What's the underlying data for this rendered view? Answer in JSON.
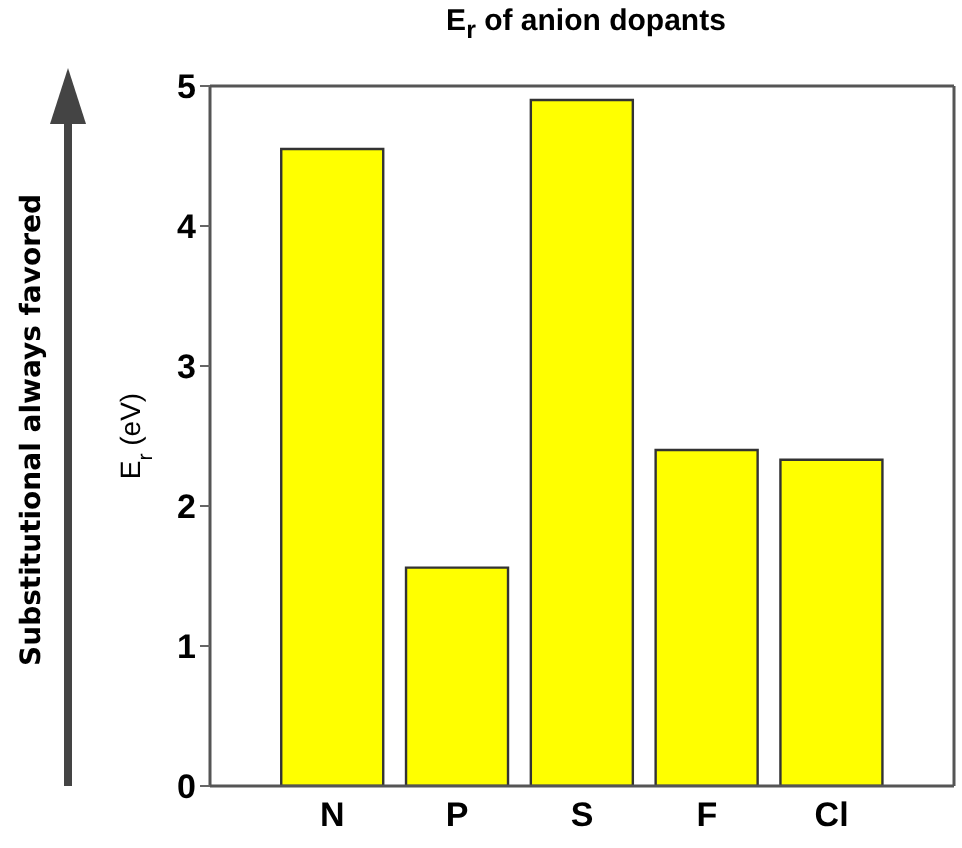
{
  "chart_data": {
    "type": "bar",
    "title": "E$_{r}$ of anion dopants",
    "ylabel": "E$_{r}$ (eV)",
    "categories": [
      "N",
      "P",
      "S",
      "F",
      "Cl"
    ],
    "values": [
      4.55,
      1.56,
      4.9,
      2.4,
      2.33
    ],
    "color": "#ffff00",
    "ylim": [
      0,
      5
    ],
    "yticks": [
      0,
      1,
      2,
      3,
      4,
      5
    ],
    "annotations": [
      "Substitutional always favored"
    ]
  }
}
